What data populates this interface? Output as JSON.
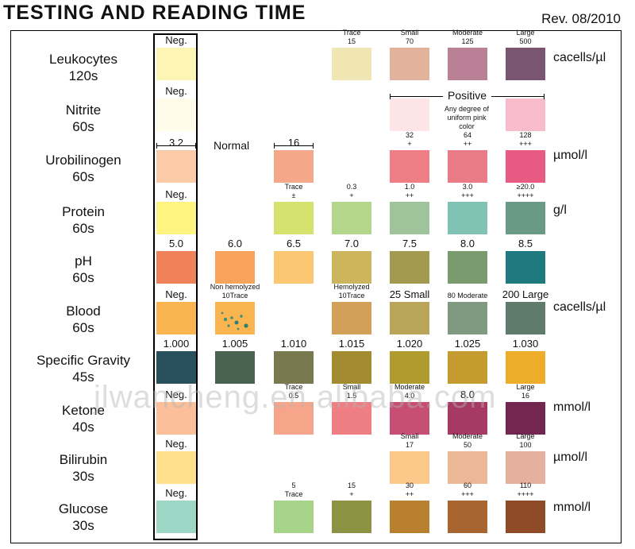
{
  "header": {
    "title": "TESTING AND READING TIME",
    "revision": "Rev. 08/2010"
  },
  "watermark": "jlwancheng.en.alibaba.com",
  "rows": {
    "leukocytes": {
      "name": "Leukocytes",
      "time": "120s",
      "unit": "cacells/µl",
      "swatches": [
        {
          "label": "Neg.",
          "color": "#fdf5b4"
        },
        {
          "label": "Trace\n15",
          "color": "#f0e6b3"
        },
        {
          "label": "Small\n70",
          "color": "#e3b29c"
        },
        {
          "label": "Moderate\n125",
          "color": "#b98096"
        },
        {
          "label": "Large\n500",
          "color": "#7a5571"
        }
      ]
    },
    "nitrite": {
      "name": "Nitrite",
      "time": "60s",
      "positive_label": "Positive",
      "positive_note": "Any degree of uniform pink color",
      "swatches": [
        {
          "label": "Neg.",
          "color": "#fffcea"
        },
        {
          "label": "",
          "color": "#fde4e6"
        },
        {
          "label": "",
          "color": "#f8bccd"
        }
      ]
    },
    "urobilinogen": {
      "name": "Urobilinogen",
      "time": "60s",
      "unit": "µmol/l",
      "normal_label": "Normal",
      "swatches": [
        {
          "label": "3.2",
          "color": "#fbcba8"
        },
        {
          "label": "16",
          "color": "#f5a78a"
        },
        {
          "label": "32\n+",
          "color": "#f07e86"
        },
        {
          "label": "64\n++",
          "color": "#ea7c88"
        },
        {
          "label": "128\n+++",
          "color": "#e85a81"
        }
      ]
    },
    "protein": {
      "name": "Protein",
      "time": "60s",
      "unit": "g/l",
      "swatches": [
        {
          "label": "Neg.",
          "color": "#fff47f"
        },
        {
          "label": "Trace\n±",
          "color": "#d5e26d"
        },
        {
          "label": "0.3\n+",
          "color": "#b2d78a"
        },
        {
          "label": "1.0\n++",
          "color": "#9fc49c"
        },
        {
          "label": "3.0\n+++",
          "color": "#80c2b4"
        },
        {
          "label": "≥20.0\n++++",
          "color": "#6a9985"
        }
      ]
    },
    "ph": {
      "name": "pH",
      "time": "60s",
      "swatches": [
        {
          "label": "5.0",
          "color": "#f08259"
        },
        {
          "label": "6.0",
          "color": "#f7a35b"
        },
        {
          "label": "6.5",
          "color": "#fcc772"
        },
        {
          "label": "7.0",
          "color": "#ccb55c"
        },
        {
          "label": "7.5",
          "color": "#a39a4f"
        },
        {
          "label": "8.0",
          "color": "#7a9b6d"
        },
        {
          "label": "8.5",
          "color": "#1e7a7e"
        }
      ]
    },
    "blood": {
      "name": "Blood",
      "time": "60s",
      "unit": "cacells/µl",
      "swatches": [
        {
          "label": "Neg.",
          "color": "#fbb550"
        },
        {
          "label": "Non hemolyzed\n10Trace",
          "color": "#fbb550"
        },
        {
          "label": "Hemolyzed\n10Trace",
          "color": "#d3a05a"
        },
        {
          "label": "25 Small",
          "color": "#b9a45a"
        },
        {
          "label": "80 Moderate",
          "color": "#7f9a80"
        },
        {
          "label": "200 Large",
          "color": "#5f7b6c"
        }
      ]
    },
    "specific_gravity": {
      "name": "Specific Gravity",
      "time": "45s",
      "swatches": [
        {
          "label": "1.000",
          "color": "#29505d"
        },
        {
          "label": "1.005",
          "color": "#4a6250"
        },
        {
          "label": "1.010",
          "color": "#78794f"
        },
        {
          "label": "1.015",
          "color": "#a18a30"
        },
        {
          "label": "1.020",
          "color": "#b09b2e"
        },
        {
          "label": "1.025",
          "color": "#c59a2e"
        },
        {
          "label": "1.030",
          "color": "#eeac2b"
        }
      ]
    },
    "ketone": {
      "name": "Ketone",
      "time": "40s",
      "unit": "mmol/l",
      "swatches": [
        {
          "label": "Neg.",
          "color": "#fbbf9a"
        },
        {
          "label": "Trace\n0.5",
          "color": "#f6a58a"
        },
        {
          "label": "Small\n1.5",
          "color": "#ee7e82"
        },
        {
          "label": "Moderate\n4.0",
          "color": "#c74f74"
        },
        {
          "label": "8.0",
          "color": "#a63a64"
        },
        {
          "label": "Large\n16",
          "color": "#722650"
        }
      ]
    },
    "bilirubin": {
      "name": "Bilirubin",
      "time": "30s",
      "unit": "µmol/l",
      "swatches": [
        {
          "label": "Neg.",
          "color": "#ffe08d"
        },
        {
          "label": "Small\n17",
          "color": "#fdc98a"
        },
        {
          "label": "Moderate\n50",
          "color": "#ebb796"
        },
        {
          "label": "Large\n100",
          "color": "#e5b19e"
        }
      ]
    },
    "glucose": {
      "name": "Glucose",
      "time": "30s",
      "unit": "mmol/l",
      "swatches": [
        {
          "label": "Neg.",
          "color": "#9dd6c5"
        },
        {
          "label": "5\nTrace",
          "color": "#a6d489"
        },
        {
          "label": "15\n+",
          "color": "#8d9242"
        },
        {
          "label": "30\n++",
          "color": "#b9802f"
        },
        {
          "label": "60\n+++",
          "color": "#a9652f"
        },
        {
          "label": "110\n++++",
          "color": "#8f4a26"
        }
      ]
    }
  }
}
